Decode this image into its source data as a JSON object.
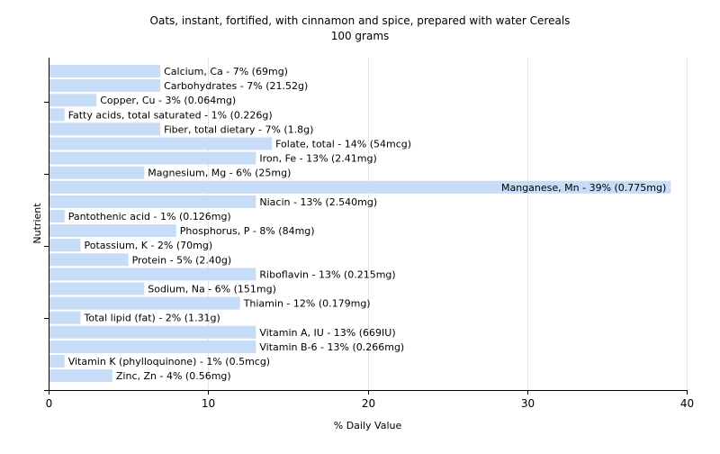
{
  "chart_data": {
    "type": "bar",
    "orientation": "horizontal",
    "title": "Oats, instant, fortified, with cinnamon and spice, prepared with water Cereals",
    "subtitle": "100 grams",
    "xlabel": "% Daily Value",
    "ylabel": "Nutrient",
    "xlim": [
      0,
      40
    ],
    "xticks": [
      0,
      10,
      20,
      30,
      40
    ],
    "grid": true,
    "bar_color": "#c6dcf7",
    "categories": [
      "Calcium, Ca",
      "Carbohydrates",
      "Copper, Cu",
      "Fatty acids, total saturated",
      "Fiber, total dietary",
      "Folate, total",
      "Iron, Fe",
      "Magnesium, Mg",
      "Manganese, Mn",
      "Niacin",
      "Pantothenic acid",
      "Phosphorus, P",
      "Potassium, K",
      "Protein",
      "Riboflavin",
      "Sodium, Na",
      "Thiamin",
      "Total lipid (fat)",
      "Vitamin A, IU",
      "Vitamin B-6",
      "Vitamin K (phylloquinone)",
      "Zinc, Zn"
    ],
    "values": [
      7,
      7,
      3,
      1,
      7,
      14,
      13,
      6,
      39,
      13,
      1,
      8,
      2,
      5,
      13,
      6,
      12,
      2,
      13,
      13,
      1,
      4
    ],
    "labels": [
      "Calcium, Ca - 7% (69mg)",
      "Carbohydrates - 7% (21.52g)",
      "Copper, Cu - 3% (0.064mg)",
      "Fatty acids, total saturated - 1% (0.226g)",
      "Fiber, total dietary - 7% (1.8g)",
      "Folate, total - 14% (54mcg)",
      "Iron, Fe - 13% (2.41mg)",
      "Magnesium, Mg - 6% (25mg)",
      "Manganese, Mn - 39% (0.775mg)",
      "Niacin - 13% (2.540mg)",
      "Pantothenic acid - 1% (0.126mg)",
      "Phosphorus, P - 8% (84mg)",
      "Potassium, K - 2% (70mg)",
      "Protein - 5% (2.40g)",
      "Riboflavin - 13% (0.215mg)",
      "Sodium, Na - 6% (151mg)",
      "Thiamin - 12% (0.179mg)",
      "Total lipid (fat) - 2% (1.31g)",
      "Vitamin A, IU - 13% (669IU)",
      "Vitamin B-6 - 13% (0.266mg)",
      "Vitamin K (phylloquinone) - 1% (0.5mcg)",
      "Zinc, Zn - 4% (0.56mg)"
    ]
  }
}
